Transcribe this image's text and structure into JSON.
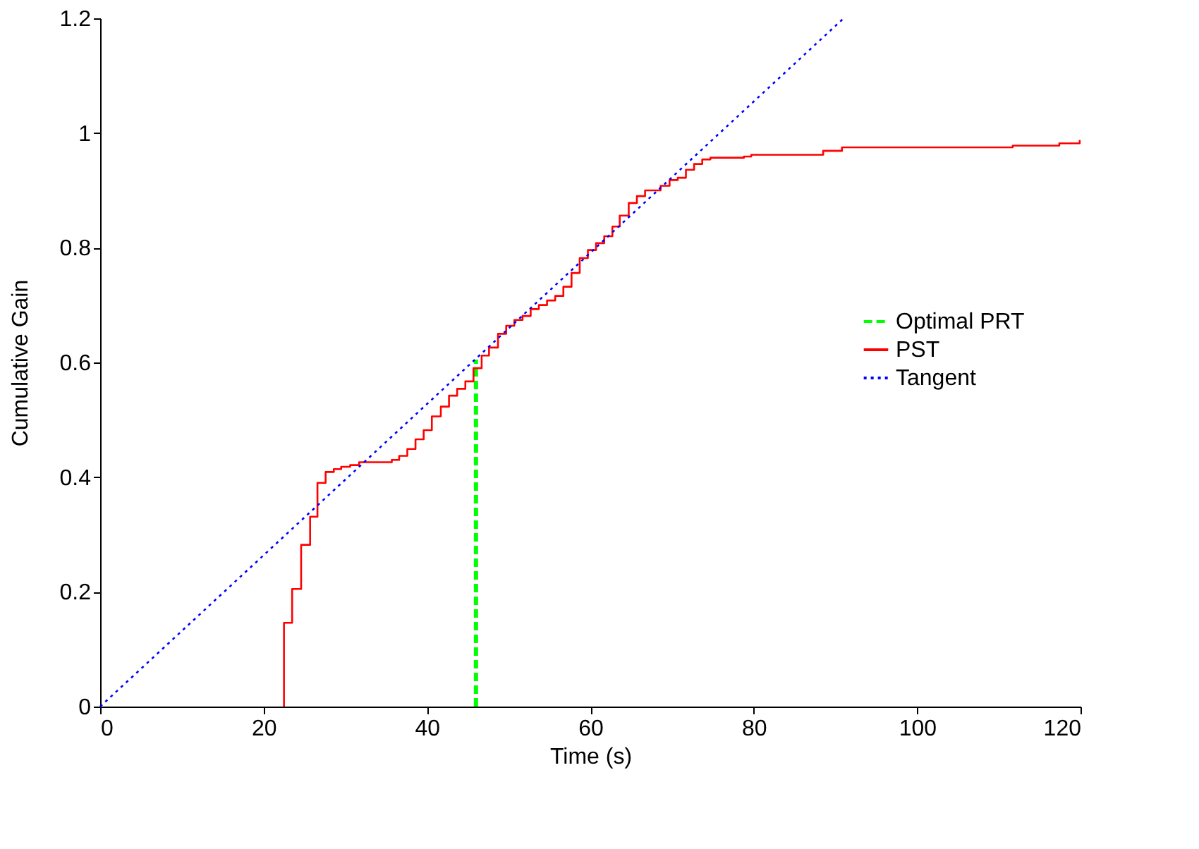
{
  "chart_data": {
    "type": "line",
    "xlabel": "Time (s)",
    "ylabel": "Cumulative Gain",
    "xlim": [
      0,
      120
    ],
    "ylim": [
      0,
      1.2
    ],
    "xticks": [
      0,
      20,
      40,
      60,
      80,
      100,
      120
    ],
    "yticks": [
      0,
      0.2,
      0.4,
      0.6,
      0.8,
      1,
      1.2
    ],
    "grid": false,
    "legend": "right",
    "marker": "none",
    "series": [
      {
        "name": "Optimal PRT",
        "type": "line",
        "line_style": "dashed",
        "color": "#00ff00",
        "x": [
          46,
          46
        ],
        "values": [
          0,
          0.605
        ]
      },
      {
        "name": "PST",
        "type": "step",
        "line_style": "solid",
        "color": "#ff0000",
        "x": [
          22.5,
          22.5,
          23.5,
          24.6,
          25.7,
          26.6,
          27.6,
          28.6,
          29.5,
          30.6,
          31.7,
          35.7,
          36.6,
          37.6,
          38.6,
          39.6,
          40.6,
          41.7,
          42.7,
          43.7,
          44.7,
          45.7,
          46.7,
          47.6,
          48.7,
          49.7,
          50.7,
          51.7,
          52.7,
          53.7,
          54.7,
          55.7,
          56.7,
          57.7,
          58.7,
          59.7,
          60.7,
          61.7,
          62.7,
          63.6,
          64.7,
          65.7,
          66.7,
          68.6,
          69.7,
          70.7,
          71.7,
          72.7,
          73.7,
          74.7,
          78.8,
          79.7,
          88.5,
          90.8,
          111.7,
          117.4,
          119.9
        ],
        "values": [
          0,
          0.146,
          0.205,
          0.282,
          0.331,
          0.39,
          0.409,
          0.414,
          0.418,
          0.421,
          0.426,
          0.43,
          0.437,
          0.449,
          0.466,
          0.482,
          0.506,
          0.523,
          0.542,
          0.554,
          0.567,
          0.59,
          0.612,
          0.626,
          0.65,
          0.664,
          0.674,
          0.681,
          0.693,
          0.7,
          0.708,
          0.716,
          0.732,
          0.756,
          0.782,
          0.796,
          0.808,
          0.82,
          0.837,
          0.856,
          0.878,
          0.89,
          0.9,
          0.908,
          0.918,
          0.922,
          0.936,
          0.946,
          0.954,
          0.957,
          0.959,
          0.962,
          0.969,
          0.975,
          0.978,
          0.982,
          0.988
        ]
      },
      {
        "name": "Tangent",
        "type": "line",
        "line_style": "dotted",
        "color": "#0000ff",
        "x": [
          0,
          91
        ],
        "values": [
          0,
          1.2
        ]
      }
    ]
  }
}
